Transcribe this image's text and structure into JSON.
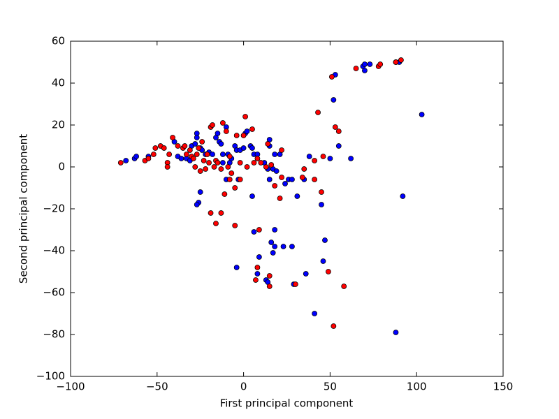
{
  "chart_data": {
    "type": "scatter",
    "xlabel": "First principal component",
    "ylabel": "Second principal component",
    "xlim": [
      -100,
      150
    ],
    "ylim": [
      -100,
      60
    ],
    "xticks": [
      {
        "value": -100,
        "label": "−100"
      },
      {
        "value": -50,
        "label": "−50"
      },
      0,
      50,
      100,
      150
    ],
    "yticks": [
      {
        "value": -100,
        "label": "−100"
      },
      {
        "value": -80,
        "label": "−80"
      },
      {
        "value": -60,
        "label": "−60"
      },
      {
        "value": -40,
        "label": "−40"
      },
      {
        "value": -20,
        "label": "−20"
      },
      0,
      20,
      40,
      60
    ],
    "series": [
      {
        "color": "#0000ff",
        "x": [
          -68,
          -63,
          -62,
          -55,
          -40,
          -38,
          -36,
          -33,
          -31,
          -30,
          -28,
          -27,
          -27,
          -25,
          -24,
          -22,
          -20,
          -18,
          -16,
          -15,
          -14,
          -13,
          -12,
          -12,
          -10,
          -9,
          -8,
          -7,
          -5,
          -4,
          -2,
          0,
          1,
          2,
          4,
          5,
          6,
          8,
          12,
          14,
          15,
          15,
          15,
          17,
          18,
          19,
          21,
          24,
          26,
          28,
          31,
          35,
          38,
          45,
          46,
          47,
          50,
          52,
          53,
          55,
          62,
          69,
          70,
          70,
          73,
          88,
          90,
          92,
          103,
          -25,
          -26,
          -27,
          5,
          -10,
          -4,
          6,
          9,
          8,
          13,
          14,
          16,
          17,
          18,
          18,
          23,
          28,
          29,
          36,
          41,
          88,
          -3
        ],
        "values": [
          3,
          4,
          5,
          5,
          12,
          5,
          4,
          4,
          3,
          10,
          11,
          16,
          14,
          9,
          8,
          6,
          7,
          6,
          14,
          16,
          12,
          11,
          6,
          2,
          19,
          6,
          2,
          4,
          10,
          8,
          8,
          9,
          16,
          17,
          10,
          9,
          6,
          6,
          2,
          -1,
          13,
          10,
          -6,
          -1,
          6,
          -2,
          6,
          -8,
          -6,
          -6,
          -14,
          -6,
          5,
          -18,
          -45,
          -35,
          4,
          32,
          44,
          10,
          4,
          48,
          46,
          49,
          49,
          50,
          50,
          -14,
          25,
          -12,
          -17,
          -18,
          -14,
          -6,
          -48,
          -31,
          -43,
          -51,
          -54,
          -55,
          -36,
          -41,
          -38,
          -30,
          -38,
          -38,
          -56,
          -51,
          -70,
          -79,
          -6
        ]
      },
      {
        "color": "#ff0000",
        "x": [
          -71,
          -57,
          -55,
          -52,
          -51,
          -48,
          -46,
          -44,
          -44,
          -43,
          -41,
          -38,
          -35,
          -34,
          -33,
          -31,
          -30,
          -29,
          -28,
          -27,
          -26,
          -25,
          -24,
          -23,
          -22,
          -21,
          -20,
          -19,
          -18,
          -17,
          -16,
          -15,
          -13,
          -12,
          -11,
          -10,
          -9,
          -8,
          -7,
          -5,
          -5,
          -4,
          -2,
          0,
          1,
          2,
          5,
          6,
          8,
          9,
          10,
          13,
          14,
          16,
          18,
          21,
          22,
          22,
          34,
          35,
          41,
          41,
          43,
          45,
          46,
          49,
          51,
          53,
          55,
          58,
          65,
          78,
          79,
          88,
          91,
          52,
          30,
          15,
          15,
          7,
          8,
          -16,
          -13,
          -19,
          -8,
          -2
        ],
        "values": [
          2,
          3,
          4,
          6,
          9,
          10,
          9,
          2,
          0,
          6,
          14,
          10,
          9,
          10,
          6,
          8,
          5,
          4,
          0,
          6,
          9,
          -2,
          12,
          3,
          -1,
          6,
          2,
          19,
          20,
          0,
          3,
          2,
          -1,
          21,
          -13,
          17,
          0,
          -6,
          -3,
          -28,
          -10,
          15,
          -6,
          15,
          24,
          0,
          18,
          2,
          4,
          -30,
          2,
          0,
          11,
          1,
          -9,
          -15,
          8,
          -5,
          -5,
          -1,
          3,
          -6,
          26,
          -12,
          5,
          -50,
          43,
          19,
          17,
          -57,
          47,
          48,
          49,
          50,
          51,
          -76,
          -56,
          -57,
          -52,
          -54,
          -48,
          -27,
          -22,
          -22,
          5,
          2
        ]
      }
    ]
  }
}
